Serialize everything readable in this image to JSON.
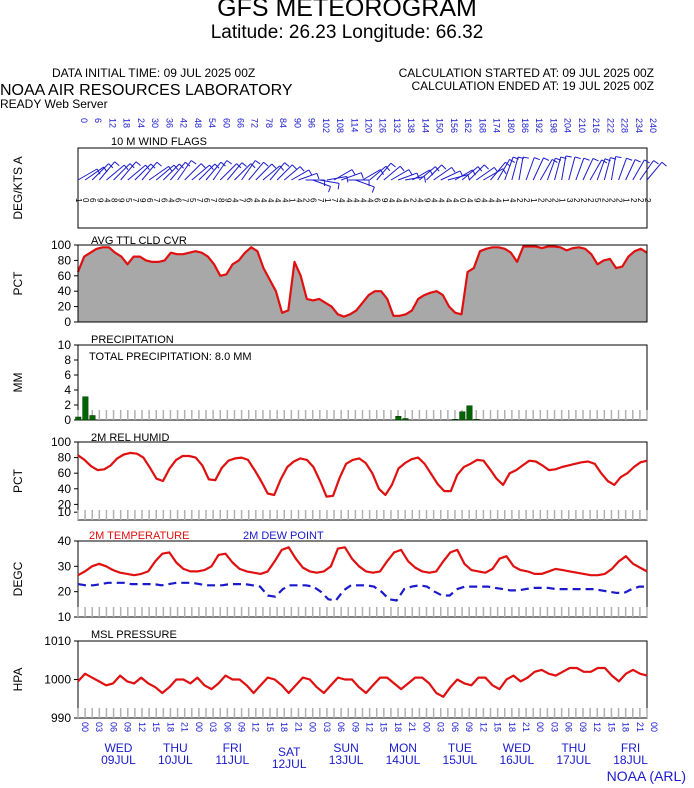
{
  "header": {
    "title": "GFS METEOROGRAM",
    "subtitle": "Latitude: 26.23 Longitude:  66.32",
    "init_time": "DATA INITIAL TIME: 09 JUL 2025 00Z",
    "calc_started": "CALCULATION STARTED AT: 09 JUL 2025 00Z",
    "calc_ended": "CALCULATION ENDED AT: 19 JUL 2025 00Z",
    "lab": "NOAA AIR RESOURCES LABORATORY",
    "server": "READY Web Server",
    "credit": "NOAA (ARL)"
  },
  "colors": {
    "red": "#e01010",
    "blue": "#1a1acc",
    "green": "#006400",
    "cloud_fill": "#a8a8a8",
    "grid_tick": "#b0b0b0"
  },
  "chart_data": [
    {
      "type": "line",
      "title": "10 M  WIND FLAGS",
      "ylabel": "DEG/KTS  A",
      "x_hours": "0 to 240 every 3 hours",
      "wind_direction_deg": [
        60,
        55,
        45,
        40,
        50,
        45,
        40,
        50,
        45,
        40,
        55,
        50,
        45,
        40,
        35,
        45,
        50,
        45,
        40,
        35,
        45,
        40,
        45,
        35,
        40,
        45,
        50,
        40,
        45,
        50,
        60,
        70,
        90,
        110,
        100,
        80,
        60,
        70,
        90,
        110,
        60,
        50,
        40,
        50,
        60,
        70,
        80,
        60,
        50,
        45,
        55,
        65,
        75,
        60,
        50,
        45,
        55,
        60,
        40,
        30,
        20,
        15,
        10,
        20,
        25,
        30,
        20,
        15,
        10,
        15,
        20,
        25,
        30,
        20,
        15,
        10,
        20,
        25,
        30,
        35,
        40
      ],
      "wind_speed_kt": [
        10,
        11,
        12,
        13,
        12,
        12,
        13,
        12,
        11,
        12,
        13,
        12,
        11,
        12,
        13,
        12,
        12,
        11,
        12,
        13,
        12,
        11,
        12,
        13,
        12,
        11,
        10,
        11,
        9,
        8,
        7,
        6,
        5,
        5,
        6,
        7,
        8,
        9,
        8,
        7,
        8,
        9,
        10,
        9,
        8,
        7,
        6,
        7,
        8,
        9,
        10,
        9,
        8,
        7,
        8,
        9,
        10,
        11,
        12,
        13,
        14,
        13,
        12,
        13,
        14,
        13,
        12,
        13,
        14,
        13,
        12,
        13,
        12,
        11,
        12,
        13,
        12,
        11,
        12,
        13,
        12
      ],
      "speed_labels": "1 0 6 9 4 8 9 5 7 9 6 7 6 4 6 7 5 7 6 7 8 9 4 7 6 4 4 4 4 4 1 4 2 6 7 1 7 4 4 4 4 4 6 9 4 4 4 2 4 9 4 4 4 4 0 4 9 4 4 4 1 4 2 2 1 2 2 2 1 3 2 2 2 5 2 2 2 1 2 2 2"
    },
    {
      "type": "area",
      "title": "AVG TTL CLD CVR",
      "ylabel": "PCT",
      "ylim": [
        0,
        100
      ],
      "yticks": [
        0,
        20,
        40,
        60,
        80,
        100
      ],
      "x_hours": "0 to 240 every 3 hours",
      "values": [
        65,
        85,
        90,
        95,
        97,
        97,
        90,
        85,
        75,
        85,
        85,
        80,
        78,
        78,
        80,
        90,
        88,
        88,
        90,
        92,
        90,
        85,
        75,
        60,
        62,
        75,
        80,
        90,
        97,
        92,
        70,
        55,
        40,
        12,
        15,
        78,
        60,
        30,
        28,
        30,
        25,
        20,
        10,
        7,
        10,
        15,
        25,
        35,
        40,
        40,
        30,
        8,
        8,
        10,
        15,
        30,
        35,
        38,
        40,
        35,
        20,
        12,
        10,
        65,
        70,
        92,
        95,
        97,
        97,
        95,
        90,
        78,
        98,
        98,
        98,
        96,
        98,
        98,
        97,
        93,
        96,
        97,
        95,
        88,
        75,
        80,
        82,
        70,
        72,
        85,
        92,
        95,
        90
      ]
    },
    {
      "type": "bar",
      "title": "PRECIPITATION",
      "annotation": "TOTAL PRECIPITATION:   8.0 MM",
      "ylabel": "MM",
      "ylim": [
        0,
        10
      ],
      "yticks": [
        0,
        2,
        4,
        6,
        8,
        10
      ],
      "bars": [
        {
          "hour": 0,
          "value": 0.4
        },
        {
          "hour": 3,
          "value": 3.1
        },
        {
          "hour": 6,
          "value": 0.6
        },
        {
          "hour": 135,
          "value": 0.5
        },
        {
          "hour": 138,
          "value": 0.2
        },
        {
          "hour": 159,
          "value": 0.1
        },
        {
          "hour": 162,
          "value": 1.1
        },
        {
          "hour": 165,
          "value": 1.9
        },
        {
          "hour": 168,
          "value": 0.1
        }
      ]
    },
    {
      "type": "line",
      "title": "2M REL HUMID",
      "ylabel": "PCT",
      "ylim": [
        0,
        100
      ],
      "yticks": [
        10,
        20,
        40,
        60,
        80,
        100
      ],
      "x_hours": "0 to 240 every 3 hours",
      "values": [
        83,
        77,
        69,
        64,
        65,
        70,
        79,
        84,
        86,
        85,
        80,
        67,
        53,
        50,
        66,
        77,
        82,
        82,
        80,
        70,
        52,
        51,
        67,
        76,
        79,
        80,
        77,
        64,
        50,
        34,
        32,
        52,
        68,
        75,
        79,
        77,
        68,
        50,
        30,
        31,
        54,
        72,
        77,
        79,
        73,
        60,
        40,
        32,
        45,
        66,
        73,
        78,
        80,
        72,
        59,
        46,
        37,
        37,
        58,
        68,
        72,
        77,
        76,
        65,
        53,
        45,
        60,
        64,
        70,
        76,
        75,
        70,
        64,
        65,
        68,
        70,
        72,
        74,
        75,
        72,
        60,
        50,
        45,
        55,
        60,
        68,
        74,
        76
      ]
    },
    {
      "type": "line",
      "title": "2M TEMPERATURE",
      "title2": "2M   DEW POINT",
      "ylabel": "DEGC",
      "ylim": [
        10,
        40
      ],
      "yticks": [
        10,
        20,
        30,
        40
      ],
      "x_hours": "0 to 240 every 3 hours",
      "series": [
        {
          "name": "2M TEMPERATURE",
          "color": "#e01010",
          "values": [
            26.5,
            28,
            30,
            31,
            30,
            28.5,
            27.5,
            27,
            26.5,
            27,
            28,
            32,
            35,
            35.5,
            31.5,
            29,
            28,
            28,
            28.5,
            30,
            34.5,
            35,
            31.5,
            29,
            28,
            27.5,
            27,
            28,
            32,
            36.5,
            37.5,
            33,
            29.5,
            28,
            27.5,
            28,
            30,
            37,
            37.5,
            33,
            30,
            28,
            27.5,
            28,
            32,
            35.5,
            36.5,
            32,
            29.5,
            28,
            27.5,
            28,
            32,
            35.5,
            36.5,
            31,
            28.5,
            28,
            27.5,
            29,
            33,
            34,
            30,
            28.5,
            28,
            27,
            27,
            28,
            29,
            28.5,
            28,
            27.5,
            27,
            26.5,
            26.5,
            27,
            29,
            32,
            34,
            31,
            29.5,
            28
          ]
        },
        {
          "name": "2M   DEW POINT",
          "color": "#1a1acc",
          "values": [
            23,
            22.5,
            22.5,
            23,
            23.5,
            23.5,
            23.5,
            23,
            23,
            23,
            23,
            22.5,
            23,
            23.5,
            23.5,
            23.5,
            23,
            22.5,
            22.5,
            22.5,
            23,
            23,
            23,
            22.5,
            22,
            18.5,
            18,
            21,
            22.5,
            22.5,
            22.5,
            22,
            20,
            17,
            16.5,
            20.5,
            22.5,
            22.5,
            22.5,
            22,
            20,
            17,
            16.5,
            21,
            22,
            22.5,
            22,
            20,
            18.5,
            18.5,
            21,
            22,
            22,
            22,
            22,
            21.5,
            21,
            20.5,
            20.5,
            21,
            21.5,
            21.5,
            21.5,
            21,
            21,
            21,
            21,
            21,
            21,
            20.5,
            20,
            19.5,
            19.5,
            21,
            22,
            22
          ]
        }
      ]
    },
    {
      "type": "line",
      "title": "MSL PRESSURE",
      "ylabel": "HPA",
      "ylim": [
        990,
        1010
      ],
      "yticks": [
        990,
        1000,
        1010
      ],
      "x_hours": "0 to 240 every 3 hours",
      "values": [
        999.5,
        1001.5,
        1000.5,
        999.5,
        998.5,
        999,
        1001,
        999.5,
        999,
        1000.5,
        999,
        998,
        996.5,
        998,
        1000,
        1000,
        999,
        1000.5,
        998.5,
        997.5,
        999,
        1001,
        1000,
        1000,
        998.5,
        996.5,
        998.5,
        1000.5,
        1000,
        998.5,
        996.5,
        998.5,
        1000.5,
        1000,
        998,
        996.5,
        998.5,
        1000.5,
        1000,
        1000,
        998,
        996.5,
        998.5,
        1000.5,
        1000.5,
        999,
        997.5,
        999,
        1000.5,
        1000.5,
        999,
        996.5,
        995.5,
        998,
        1000,
        999,
        998.5,
        1000.5,
        1000.5,
        998.5,
        997.5,
        1000,
        1001,
        999.5,
        1000.5,
        1002,
        1002.5,
        1001.5,
        1001,
        1002,
        1003,
        1003,
        1002,
        1002,
        1003,
        1003,
        1001,
        999.5,
        1001.5,
        1002.5,
        1001.5,
        1001
      ]
    }
  ],
  "x_axis": {
    "hour_labels": [
      "0",
      "6",
      "12",
      "18",
      "24",
      "30",
      "36",
      "42",
      "48",
      "54",
      "60",
      "66",
      "72",
      "78",
      "84",
      "90",
      "96",
      "102",
      "108",
      "114",
      "120",
      "126",
      "132",
      "138",
      "144",
      "150",
      "156",
      "162",
      "168",
      "174",
      "180",
      "186",
      "192",
      "198",
      "204",
      "210",
      "216",
      "222",
      "228",
      "234",
      "240"
    ],
    "bottom_labels": [
      "00",
      "03",
      "06",
      "09",
      "12",
      "15",
      "18",
      "21",
      "00",
      "03",
      "06",
      "09",
      "12",
      "15",
      "18",
      "21",
      "00",
      "03",
      "06",
      "09",
      "12",
      "15",
      "18",
      "21",
      "00",
      "03",
      "06",
      "09",
      "12",
      "15",
      "18",
      "21",
      "00",
      "03",
      "06",
      "09",
      "12",
      "15",
      "18",
      "21",
      "00"
    ],
    "day_names": [
      "WED",
      "THU",
      "FRI",
      "SAT",
      "SUN",
      "MON",
      "TUE",
      "WED",
      "THU",
      "FRI"
    ],
    "day_dates": [
      "09JUL",
      "10JUL",
      "11JUL",
      "12JUL",
      "13JUL",
      "14JUL",
      "15JUL",
      "16JUL",
      "17JUL",
      "18JUL"
    ]
  }
}
